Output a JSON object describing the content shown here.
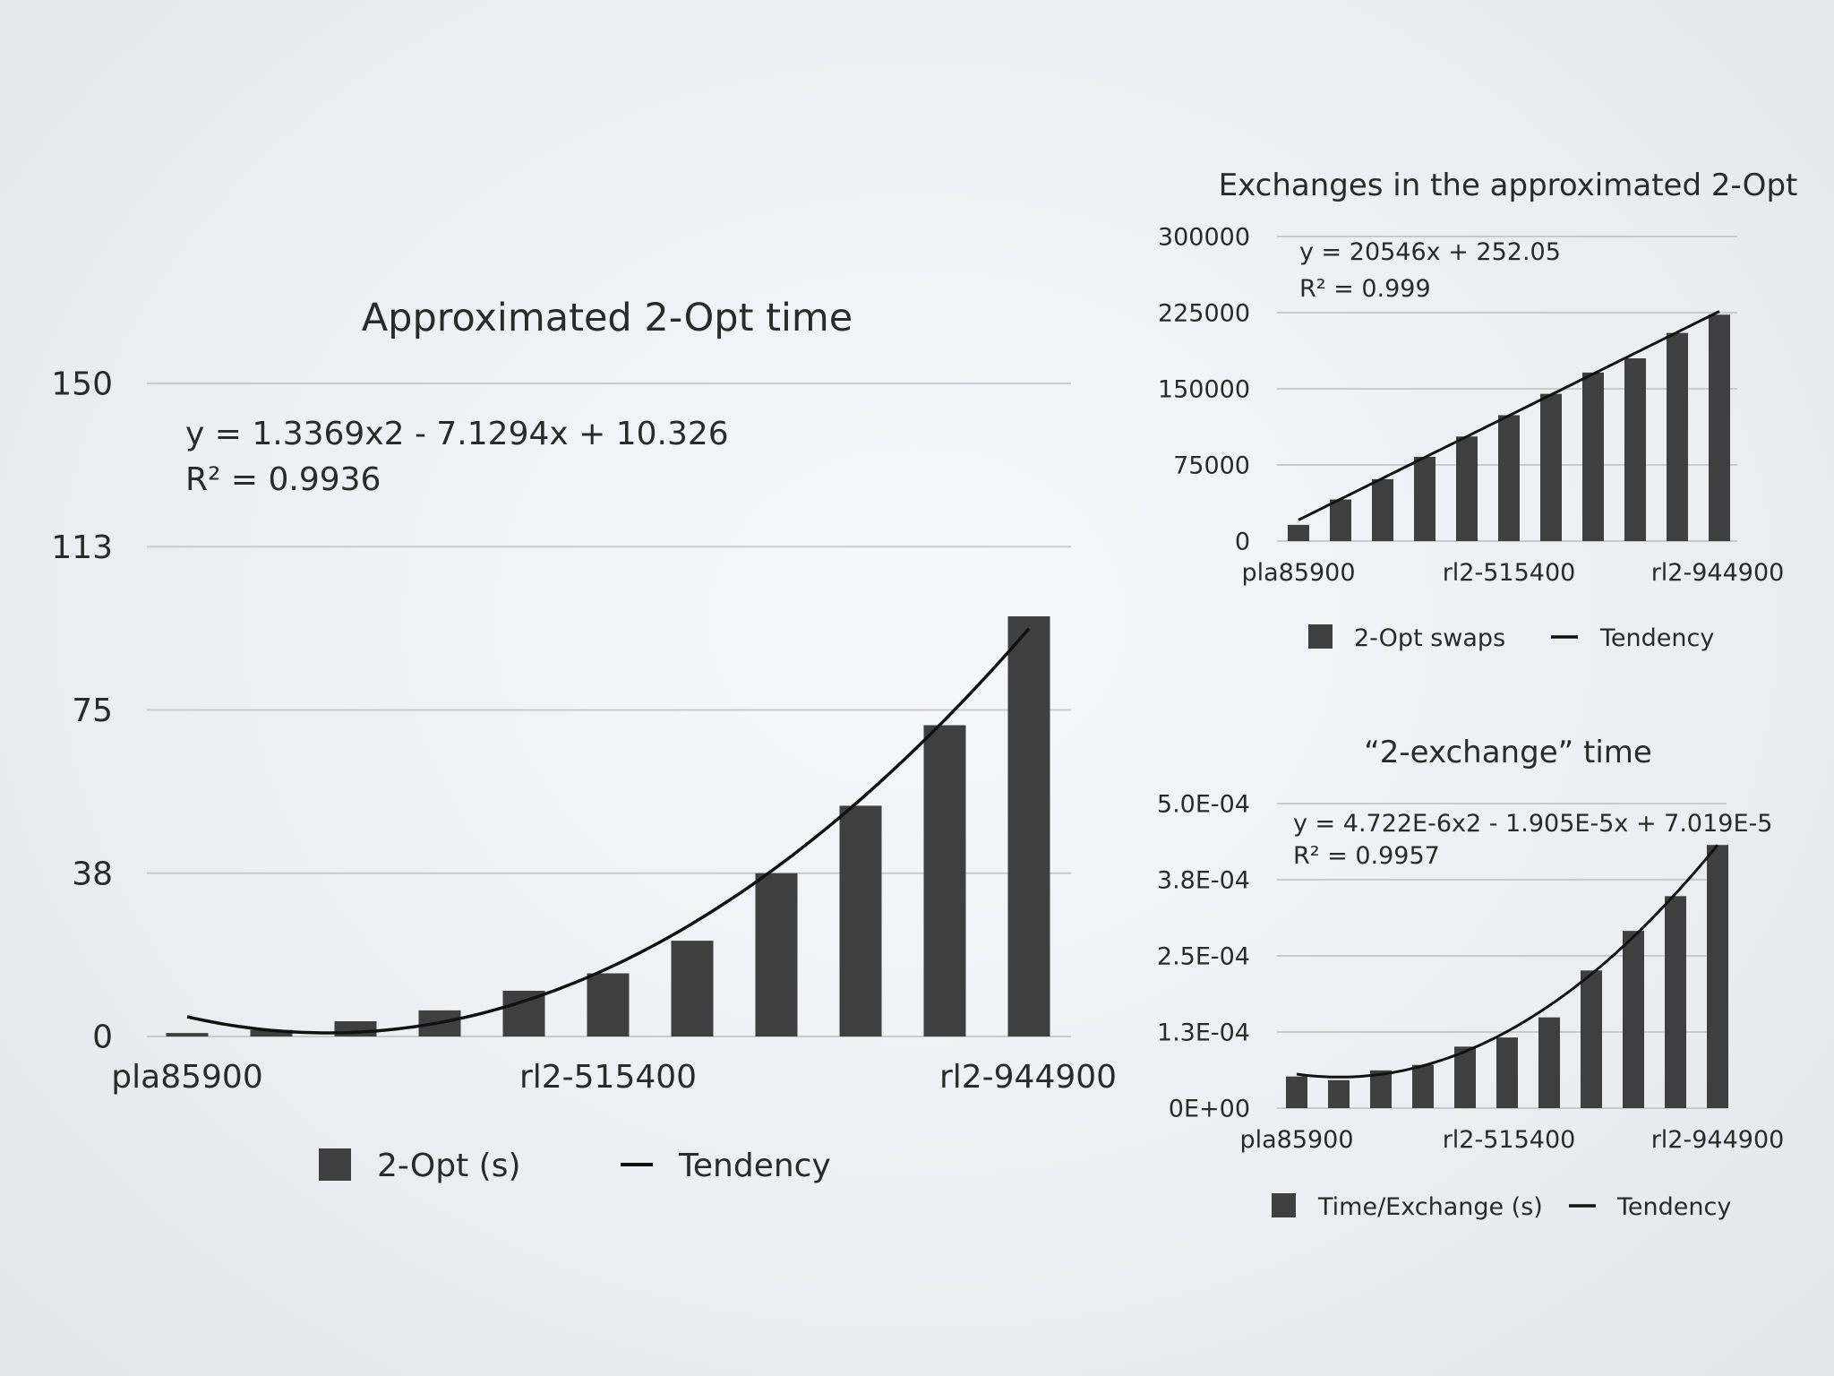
{
  "colors": {
    "bar": "#3f3f3f",
    "line": "#111111",
    "grid": "#c9cacd",
    "text": "#2a2a2a"
  },
  "chart_data": [
    {
      "id": "main",
      "type": "bar",
      "title": "Approximated 2-Opt time",
      "categories": [
        "pla85900",
        "",
        "",
        "",
        "",
        "rl2-515400",
        "",
        "",
        "",
        "",
        "rl2-944900"
      ],
      "x_tick_labels": [
        "pla85900",
        "rl2-515400",
        "rl2-944900"
      ],
      "y_tick_labels": [
        "0",
        "38",
        "75",
        "113",
        "150"
      ],
      "ylim": [
        0,
        150
      ],
      "grid": true,
      "legend_position": "bottom",
      "series": [
        {
          "name": "2-Opt (s)",
          "type": "bar",
          "values": [
            0.8,
            1.5,
            3.5,
            6,
            10.5,
            14.5,
            22,
            37.5,
            53,
            71.5,
            96.5
          ]
        },
        {
          "name": "Tendency",
          "type": "line",
          "trend": "poly2",
          "coeffs": [
            1.3369,
            -7.1294,
            10.326
          ]
        }
      ],
      "annotation": {
        "equation": "y = 1.3369x2 - 7.1294x + 10.326",
        "r2": "R² = 0.9936"
      }
    },
    {
      "id": "exchanges",
      "type": "bar",
      "title": "Exchanges in the approximated 2-Opt",
      "categories": [
        "pla85900",
        "",
        "",
        "",
        "",
        "rl2-515400",
        "",
        "",
        "",
        "",
        "rl2-944900"
      ],
      "x_tick_labels": [
        "pla85900",
        "rl2-515400",
        "rl2-944900"
      ],
      "y_tick_labels": [
        "0",
        "75000",
        "150000",
        "225000",
        "300000"
      ],
      "ylim": [
        0,
        300000
      ],
      "grid": true,
      "legend_position": "bottom",
      "series": [
        {
          "name": "2-Opt swaps",
          "type": "bar",
          "values": [
            16000,
            41000,
            61000,
            83000,
            103000,
            124000,
            145000,
            166000,
            180000,
            205000,
            223000
          ]
        },
        {
          "name": "Tendency",
          "type": "line",
          "trend": "linear",
          "coeffs": [
            20546,
            252.05
          ]
        }
      ],
      "annotation": {
        "equation": "y = 20546x + 252.05",
        "r2": "R² = 0.999"
      }
    },
    {
      "id": "exchange_time",
      "type": "bar",
      "title": "“2-exchange” time",
      "categories": [
        "pla85900",
        "",
        "",
        "",
        "",
        "rl2-515400",
        "",
        "",
        "",
        "",
        "rl2-944900"
      ],
      "x_tick_labels": [
        "pla85900",
        "rl2-515400",
        "rl2-944900"
      ],
      "y_tick_labels": [
        "0E+00",
        "1.3E-04",
        "2.5E-04",
        "3.8E-04",
        "5.0E-04"
      ],
      "ylim": [
        0,
        0.0005
      ],
      "grid": true,
      "legend_position": "bottom",
      "series": [
        {
          "name": "Time/Exchange (s)",
          "type": "bar",
          "values": [
            5.2e-05,
            4.6e-05,
            6.2e-05,
            7.1e-05,
            0.000101,
            0.000116,
            0.000149,
            0.000226,
            0.000291,
            0.000348,
            0.000432
          ]
        },
        {
          "name": "Tendency",
          "type": "line",
          "trend": "poly2",
          "coeffs": [
            4.722e-06,
            -1.905e-05,
            7.019e-05
          ]
        }
      ],
      "annotation": {
        "equation": "y = 4.722E-6x2 - 1.905E-5x + 7.019E-5",
        "r2": "R² = 0.9957"
      }
    }
  ]
}
